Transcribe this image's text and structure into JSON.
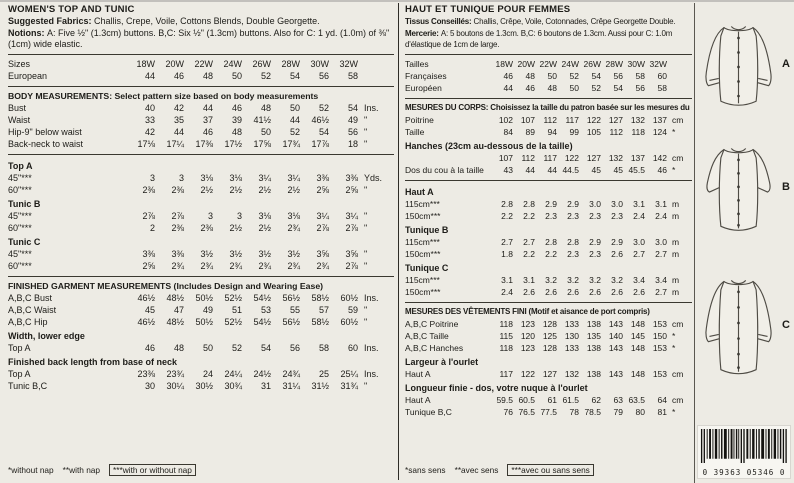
{
  "english": {
    "title": "WOMEN'S TOP AND TUNIC",
    "fabrics_label": "Suggested Fabrics: ",
    "fabrics_text": "Challis, Crepe, Voile, Cottons Blends, Double Georgette.",
    "notions_label": "Notions: ",
    "notions_text": "A: Five ½\" (1.3cm) buttons. B,C: Six ½\" (1.3cm) buttons. Also for C: 1 yd. (1.0m) of ⅜\" (1cm) wide elastic.",
    "sizes": {
      "rows": [
        {
          "label": "Sizes",
          "values": [
            "18W",
            "20W",
            "22W",
            "24W",
            "26W",
            "28W",
            "30W",
            "32W"
          ],
          "unit": ""
        },
        {
          "label": "European",
          "values": [
            "44",
            "46",
            "48",
            "50",
            "52",
            "54",
            "56",
            "58"
          ],
          "unit": ""
        }
      ]
    },
    "body": {
      "heading": "BODY MEASUREMENTS: Select pattern size based on body measurements",
      "rows": [
        {
          "label": "Bust",
          "values": [
            "40",
            "42",
            "44",
            "46",
            "48",
            "50",
            "52",
            "54"
          ],
          "unit": "Ins."
        },
        {
          "label": "Waist",
          "values": [
            "33",
            "35",
            "37",
            "39",
            "41½",
            "44",
            "46½",
            "49"
          ],
          "unit": "\""
        },
        {
          "label": "Hip-9\" below waist",
          "values": [
            "42",
            "44",
            "46",
            "48",
            "50",
            "52",
            "54",
            "56"
          ],
          "unit": "\""
        },
        {
          "label": "Back-neck to waist",
          "values": [
            "17⅛",
            "17¼",
            "17⅜",
            "17½",
            "17⅝",
            "17¾",
            "17⅞",
            "18"
          ],
          "unit": "\""
        }
      ]
    },
    "yardage": [
      {
        "garment": "Top A",
        "rows": [
          {
            "label": "45\"***",
            "values": [
              "3",
              "3",
              "3⅛",
              "3⅛",
              "3¼",
              "3¼",
              "3⅜",
              "3⅜"
            ],
            "unit": "Yds."
          },
          {
            "label": "60\"***",
            "values": [
              "2⅜",
              "2⅜",
              "2½",
              "2½",
              "2½",
              "2½",
              "2⅝",
              "2⅝"
            ],
            "unit": "\""
          }
        ]
      },
      {
        "garment": "Tunic B",
        "rows": [
          {
            "label": "45\"***",
            "values": [
              "2⅞",
              "2⅞",
              "3",
              "3",
              "3⅛",
              "3⅛",
              "3¼",
              "3¼"
            ],
            "unit": "\""
          },
          {
            "label": "60\"***",
            "values": [
              "2",
              "2⅜",
              "2⅜",
              "2½",
              "2½",
              "2¾",
              "2⅞",
              "2⅞"
            ],
            "unit": "\""
          }
        ]
      },
      {
        "garment": "Tunic C",
        "rows": [
          {
            "label": "45\"***",
            "values": [
              "3⅜",
              "3⅜",
              "3½",
              "3½",
              "3½",
              "3½",
              "3⅝",
              "3⅝"
            ],
            "unit": "\""
          },
          {
            "label": "60\"***",
            "values": [
              "2⅝",
              "2¾",
              "2¾",
              "2¾",
              "2¾",
              "2¾",
              "2¾",
              "2⅞"
            ],
            "unit": "\""
          }
        ]
      }
    ],
    "finished": {
      "heading": "FINISHED GARMENT MEASUREMENTS (Includes Design and Wearing Ease)",
      "rows": [
        {
          "label": "A,B,C Bust",
          "values": [
            "46½",
            "48½",
            "50½",
            "52½",
            "54½",
            "56½",
            "58½",
            "60½"
          ],
          "unit": "Ins."
        },
        {
          "label": "A,B,C Waist",
          "values": [
            "45",
            "47",
            "49",
            "51",
            "53",
            "55",
            "57",
            "59"
          ],
          "unit": "\""
        },
        {
          "label": "A,B,C Hip",
          "values": [
            "46½",
            "48½",
            "50½",
            "52½",
            "54½",
            "56½",
            "58½",
            "60½"
          ],
          "unit": "\""
        }
      ],
      "width_heading": "Width, lower edge",
      "width_rows": [
        {
          "label": "Top A",
          "values": [
            "46",
            "48",
            "50",
            "52",
            "54",
            "56",
            "58",
            "60"
          ],
          "unit": "Ins."
        }
      ],
      "length_heading": "Finished back length from base of neck",
      "length_rows": [
        {
          "label": "Top A",
          "values": [
            "23⅜",
            "23¾",
            "24",
            "24¼",
            "24½",
            "24¾",
            "25",
            "25¼"
          ],
          "unit": "Ins."
        },
        {
          "label": "Tunic B,C",
          "values": [
            "30",
            "30¼",
            "30½",
            "30¾",
            "31",
            "31¼",
            "31½",
            "31¾"
          ],
          "unit": "\""
        }
      ]
    },
    "footnotes": [
      "*without nap",
      "**with nap",
      "***with or without nap"
    ]
  },
  "french": {
    "title": "HAUT ET TUNIQUE POUR FEMMES",
    "fabrics_label": "Tissus Conseillés: ",
    "fabrics_text": "Challis, Crêpe, Voile, Cotonnades, Crêpe Georgette Double.",
    "notions_label": "Mercerie: ",
    "notions_text": "A: 5 boutons de 1.3cm. B,C: 6 boutons de 1.3cm. Aussi pour C: 1.0m d'élastique de 1cm de large.",
    "sizes": {
      "rows": [
        {
          "label": "Tailles",
          "values": [
            "18W",
            "20W",
            "22W",
            "24W",
            "26W",
            "28W",
            "30W",
            "32W"
          ],
          "unit": ""
        },
        {
          "label": "Françaises",
          "values": [
            "46",
            "48",
            "50",
            "52",
            "54",
            "56",
            "58",
            "60"
          ],
          "unit": ""
        },
        {
          "label": "Européen",
          "values": [
            "44",
            "46",
            "48",
            "50",
            "52",
            "54",
            "56",
            "58"
          ],
          "unit": ""
        }
      ]
    },
    "body": {
      "heading": "MESURES DU CORPS: Choisissez la taille du patron basée sur les mesures du corps",
      "rows": [
        {
          "label": "Poitrine",
          "values": [
            "102",
            "107",
            "112",
            "117",
            "122",
            "127",
            "132",
            "137"
          ],
          "unit": "cm"
        },
        {
          "label": "Taille",
          "values": [
            "84",
            "89",
            "94",
            "99",
            "105",
            "112",
            "118",
            "124"
          ],
          "unit": "*"
        }
      ],
      "hip_heading": "Hanches (23cm au-dessous de la taille)",
      "hip_rows": [
        {
          "label": "",
          "values": [
            "107",
            "112",
            "117",
            "122",
            "127",
            "132",
            "137",
            "142"
          ],
          "unit": "cm"
        },
        {
          "label": "Dos du cou à la taille",
          "values": [
            "43",
            "44",
            "44",
            "44.5",
            "45",
            "45",
            "45.5",
            "46"
          ],
          "unit": "*"
        }
      ]
    },
    "yardage": [
      {
        "garment": "Haut A",
        "rows": [
          {
            "label": "115cm***",
            "values": [
              "2.8",
              "2.8",
              "2.9",
              "2.9",
              "3.0",
              "3.0",
              "3.1",
              "3.1"
            ],
            "unit": "m"
          },
          {
            "label": "150cm***",
            "values": [
              "2.2",
              "2.2",
              "2.3",
              "2.3",
              "2.3",
              "2.3",
              "2.4",
              "2.4"
            ],
            "unit": "m"
          }
        ]
      },
      {
        "garment": "Tunique B",
        "rows": [
          {
            "label": "115cm***",
            "values": [
              "2.7",
              "2.7",
              "2.8",
              "2.8",
              "2.9",
              "2.9",
              "3.0",
              "3.0"
            ],
            "unit": "m"
          },
          {
            "label": "150cm***",
            "values": [
              "1.8",
              "2.2",
              "2.2",
              "2.3",
              "2.3",
              "2.6",
              "2.7",
              "2.7"
            ],
            "unit": "m"
          }
        ]
      },
      {
        "garment": "Tunique C",
        "rows": [
          {
            "label": "115cm***",
            "values": [
              "3.1",
              "3.1",
              "3.2",
              "3.2",
              "3.2",
              "3.2",
              "3.4",
              "3.4"
            ],
            "unit": "m"
          },
          {
            "label": "150cm***",
            "values": [
              "2.4",
              "2.6",
              "2.6",
              "2.6",
              "2.6",
              "2.6",
              "2.6",
              "2.7"
            ],
            "unit": "m"
          }
        ]
      }
    ],
    "finished": {
      "heading": "MESURES DES VÊTEMENTS FINI (Motif et aisance de port compris)",
      "rows": [
        {
          "label": "A,B,C Poitrine",
          "values": [
            "118",
            "123",
            "128",
            "133",
            "138",
            "143",
            "148",
            "153"
          ],
          "unit": "cm"
        },
        {
          "label": "A,B,C Taille",
          "values": [
            "115",
            "120",
            "125",
            "130",
            "135",
            "140",
            "145",
            "150"
          ],
          "unit": "*"
        },
        {
          "label": "A,B,C Hanches",
          "values": [
            "118",
            "123",
            "128",
            "133",
            "138",
            "143",
            "148",
            "153"
          ],
          "unit": "*"
        }
      ],
      "width_heading": "Largeur à l'ourlet",
      "width_rows": [
        {
          "label": "Haut A",
          "values": [
            "117",
            "122",
            "127",
            "132",
            "138",
            "143",
            "148",
            "153"
          ],
          "unit": "cm"
        }
      ],
      "length_heading": "Longueur finie - dos, votre nuque à l'ourlet",
      "length_rows": [
        {
          "label": "Haut A",
          "values": [
            "59.5",
            "60.5",
            "61",
            "61.5",
            "62",
            "63",
            "63.5",
            "64"
          ],
          "unit": "cm"
        },
        {
          "label": "Tunique B,C",
          "values": [
            "76",
            "76.5",
            "77.5",
            "78",
            "78.5",
            "79",
            "80",
            "81"
          ],
          "unit": "*"
        }
      ]
    },
    "footnotes": [
      "*sans sens",
      "**avec sens",
      "***avec ou sans sens"
    ]
  },
  "sidebar": {
    "view_labels": [
      "A",
      "B",
      "C"
    ],
    "barcode_digits": "0 39363 05346 0"
  }
}
